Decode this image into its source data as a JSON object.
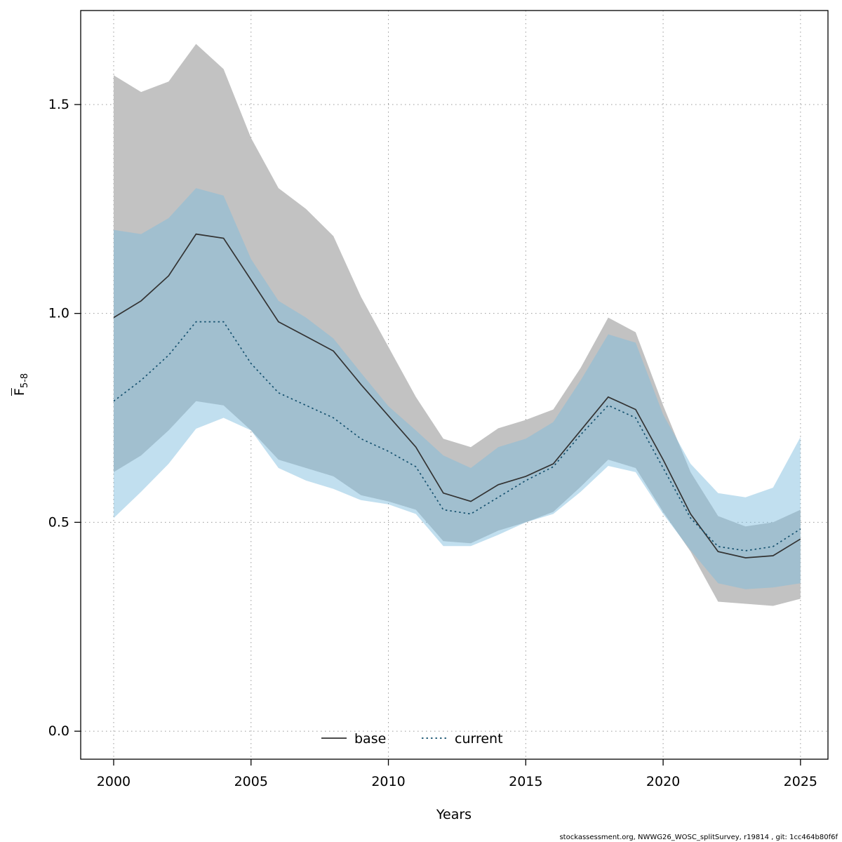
{
  "figure": {
    "footer": "stockassessment.org, NWWG26_WOSC_splitSurvey, r19814 , git: 1cc464b80f6f"
  },
  "chart_data": {
    "type": "line",
    "title": "",
    "xlabel": "Years",
    "ylabel_main": "F",
    "ylabel_sub": "5-8",
    "ylabel_overbar": true,
    "grid": true,
    "legend": {
      "position": "bottom-center-inside",
      "entries": [
        "base",
        "current"
      ]
    },
    "xlim": [
      1998.8,
      2026.0
    ],
    "ylim": [
      -0.067,
      1.725
    ],
    "x_ticks": [
      2000,
      2005,
      2010,
      2015,
      2020,
      2025
    ],
    "y_ticks": [
      0.0,
      0.5,
      1.0,
      1.5
    ],
    "x": [
      2000,
      2001,
      2002,
      2003,
      2004,
      2005,
      2006,
      2007,
      2008,
      2009,
      2010,
      2011,
      2012,
      2013,
      2014,
      2015,
      2016,
      2017,
      2018,
      2019,
      2020,
      2021,
      2022,
      2023,
      2024,
      2025
    ],
    "series": [
      {
        "name": "base",
        "line_style": "solid",
        "line_color": "#333333",
        "band_color": "#c2c2c2",
        "band_opacity": 1,
        "mean": [
          0.99,
          1.03,
          1.09,
          1.19,
          1.18,
          1.08,
          0.98,
          0.945,
          0.91,
          0.83,
          0.755,
          0.68,
          0.57,
          0.55,
          0.59,
          0.61,
          0.64,
          0.72,
          0.8,
          0.77,
          0.65,
          0.52,
          0.43,
          0.415,
          0.42,
          0.46
        ],
        "lo": [
          0.62,
          0.66,
          0.72,
          0.79,
          0.78,
          0.72,
          0.65,
          0.63,
          0.61,
          0.565,
          0.55,
          0.53,
          0.455,
          0.45,
          0.48,
          0.5,
          0.525,
          0.585,
          0.65,
          0.63,
          0.525,
          0.43,
          0.31,
          0.305,
          0.3,
          0.317
        ],
        "hi": [
          1.57,
          1.53,
          1.555,
          1.645,
          1.585,
          1.42,
          1.3,
          1.25,
          1.185,
          1.04,
          0.92,
          0.8,
          0.7,
          0.68,
          0.725,
          0.745,
          0.77,
          0.87,
          0.99,
          0.955,
          0.78,
          0.62,
          0.515,
          0.49,
          0.5,
          0.53
        ]
      },
      {
        "name": "current",
        "line_style": "dotted",
        "line_color": "#14506e",
        "band_color": "#7dbddd",
        "band_opacity": 0.48,
        "mean": [
          0.79,
          0.84,
          0.9,
          0.98,
          0.98,
          0.88,
          0.81,
          0.78,
          0.75,
          0.7,
          0.67,
          0.633,
          0.53,
          0.52,
          0.56,
          0.6,
          0.633,
          0.71,
          0.78,
          0.75,
          0.63,
          0.51,
          0.442,
          0.432,
          0.442,
          0.484
        ],
        "lo": [
          0.51,
          0.573,
          0.64,
          0.724,
          0.75,
          0.72,
          0.63,
          0.6,
          0.58,
          0.553,
          0.543,
          0.52,
          0.443,
          0.443,
          0.47,
          0.5,
          0.52,
          0.573,
          0.635,
          0.62,
          0.52,
          0.433,
          0.354,
          0.34,
          0.344,
          0.354
        ],
        "hi": [
          1.2,
          1.19,
          1.228,
          1.3,
          1.282,
          1.13,
          1.03,
          0.99,
          0.94,
          0.858,
          0.778,
          0.72,
          0.66,
          0.63,
          0.68,
          0.7,
          0.74,
          0.84,
          0.95,
          0.93,
          0.758,
          0.64,
          0.57,
          0.56,
          0.583,
          0.704
        ]
      }
    ],
    "colors": {
      "plot_border": "#000000",
      "gridline": "#999999",
      "tick_label": "#000000"
    }
  }
}
